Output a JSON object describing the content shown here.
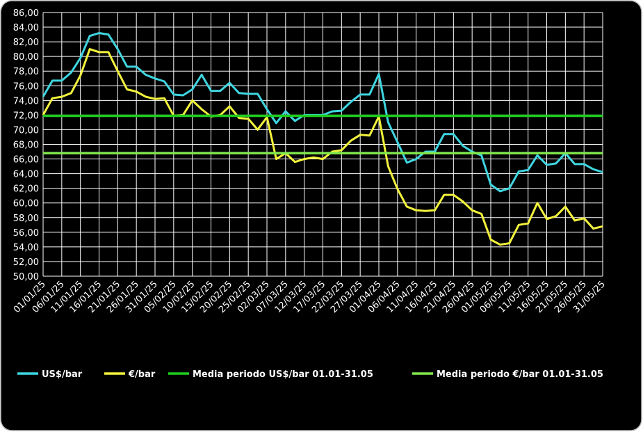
{
  "chart_data": {
    "type": "line",
    "categories": [
      "01/01/25",
      null,
      "06/01/25",
      null,
      "11/01/25",
      null,
      "16/01/25",
      null,
      "21/01/25",
      null,
      "26/01/25",
      null,
      "31/01/25",
      null,
      "05/02/25",
      null,
      "10/02/25",
      null,
      "15/02/25",
      null,
      "20/02/25",
      null,
      "25/02/25",
      null,
      "02/03/25",
      null,
      "07/03/25",
      null,
      "12/03/25",
      null,
      "17/03/25",
      null,
      "22/03/25",
      null,
      "27/03/25",
      null,
      "01/04/25",
      null,
      "06/04/25",
      null,
      "11/04/25",
      null,
      "16/04/25",
      null,
      "21/04/25",
      null,
      "26/04/25",
      null,
      "01/05/25",
      null,
      "06/05/25",
      null,
      "11/05/25",
      null,
      "16/05/25",
      null,
      "21/05/25",
      null,
      "26/05/25",
      null,
      "31/05/25"
    ],
    "series": [
      {
        "name": "US$/bar",
        "color": "#3fd6e0",
        "values": [
          74.5,
          76.7,
          76.7,
          77.8,
          79.8,
          82.8,
          83.2,
          83,
          81,
          78.6,
          78.6,
          77.5,
          77,
          76.6,
          74.8,
          74.7,
          75.5,
          77.5,
          75.3,
          75.3,
          76.4,
          75,
          74.9,
          74.9,
          72.8,
          70.9,
          72.5,
          71.2,
          72,
          72,
          72,
          72.5,
          72.6,
          73.8,
          74.8,
          74.8,
          77.6,
          71,
          68.3,
          65.5,
          66,
          67,
          67,
          69.4,
          69.4,
          67.8,
          67,
          66.5,
          62.5,
          61.6,
          62,
          64.3,
          64.5,
          66.5,
          65.2,
          65.4,
          66.8,
          65.3,
          65.3,
          64.6,
          64.2
        ]
      },
      {
        "name": "€/bar",
        "color": "#f2f23c",
        "values": [
          72,
          74.3,
          74.5,
          75,
          77.4,
          81,
          80.6,
          80.6,
          78,
          75.5,
          75.2,
          74.5,
          74.2,
          74.3,
          71.9,
          72,
          74,
          72.8,
          71.8,
          72,
          73.2,
          71.6,
          71.5,
          70,
          71.7,
          66,
          66.8,
          65.6,
          66,
          66.2,
          66,
          67,
          67.2,
          68.5,
          69.3,
          69.2,
          71.8,
          65,
          61.9,
          59.5,
          59,
          58.9,
          59,
          61.1,
          61.1,
          60.2,
          59,
          58.5,
          55,
          54.3,
          54.5,
          57,
          57.2,
          60,
          57.8,
          58.2,
          59.5,
          57.6,
          57.9,
          56.5,
          56.8
        ]
      },
      {
        "name": "Media periodo US$/bar 01.01-31.05",
        "color": "#1ecc1e",
        "value": 71.9
      },
      {
        "name": "Media periodo €/bar 01.01-31.05",
        "color": "#80e84c",
        "value": 66.8
      }
    ],
    "ylim": [
      50,
      86
    ],
    "yticks": [
      {
        "value": 50,
        "label": "50,00"
      },
      {
        "value": 52,
        "label": "52,00"
      },
      {
        "value": 54,
        "label": "54,00"
      },
      {
        "value": 56,
        "label": "56,00"
      },
      {
        "value": 58,
        "label": "58,00"
      },
      {
        "value": 60,
        "label": "60,00"
      },
      {
        "value": 62,
        "label": "62,00"
      },
      {
        "value": 64,
        "label": "64,00"
      },
      {
        "value": 66,
        "label": "66,00"
      },
      {
        "value": 68,
        "label": "68,00"
      },
      {
        "value": 70,
        "label": "70,00"
      },
      {
        "value": 72,
        "label": "72,00"
      },
      {
        "value": 74,
        "label": "74,00"
      },
      {
        "value": 76,
        "label": "76,00"
      },
      {
        "value": 78,
        "label": "78,00"
      },
      {
        "value": 80,
        "label": "80,00"
      },
      {
        "value": 82,
        "label": "82,00"
      },
      {
        "value": 84,
        "label": "84,00"
      },
      {
        "value": 86,
        "label": "86,00"
      }
    ],
    "grid": true,
    "legend": "bottom"
  }
}
